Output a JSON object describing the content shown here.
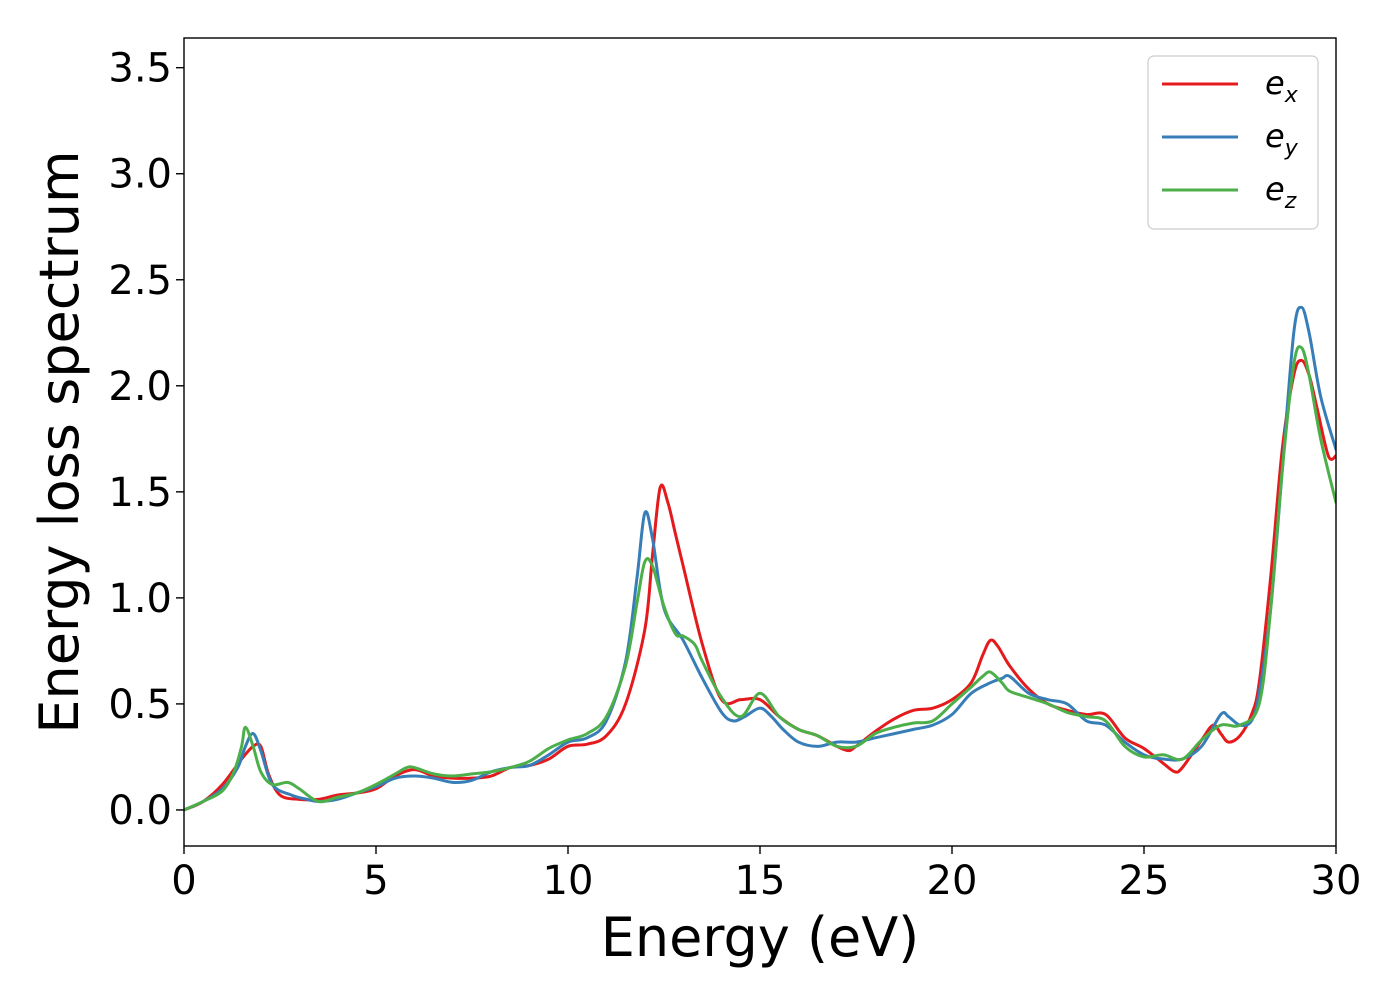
{
  "chart_data": {
    "type": "line",
    "title": "",
    "xlabel": "Energy (eV)",
    "ylabel": "Energy loss spectrum",
    "xlim": [
      0,
      30
    ],
    "ylim": [
      -0.17,
      3.64
    ],
    "xticks": [
      0,
      5,
      10,
      15,
      20,
      25,
      30
    ],
    "yticks": [
      0.0,
      0.5,
      1.0,
      1.5,
      2.0,
      2.5,
      3.0,
      3.5
    ],
    "grid": false,
    "legend_position": "top-right",
    "series": [
      {
        "name": "e_x",
        "label_base": "e",
        "label_sub": "x",
        "color": "#e41a1c",
        "x": [
          0,
          0.5,
          1.0,
          1.5,
          1.8,
          2.0,
          2.2,
          2.5,
          3.0,
          3.5,
          4.0,
          4.5,
          5.0,
          5.5,
          6.0,
          6.5,
          7.0,
          7.5,
          8.0,
          8.5,
          9.0,
          9.5,
          10.0,
          10.5,
          11.0,
          11.5,
          12.0,
          12.2,
          12.4,
          12.6,
          12.8,
          13.0,
          13.5,
          14.0,
          14.5,
          15.0,
          15.5,
          16.0,
          16.5,
          17.0,
          17.3,
          17.5,
          18.0,
          18.5,
          19.0,
          19.5,
          20.0,
          20.5,
          20.8,
          21.0,
          21.2,
          21.5,
          22.0,
          22.5,
          23.0,
          23.5,
          24.0,
          24.5,
          25.0,
          25.5,
          25.8,
          26.0,
          26.5,
          26.8,
          27.0,
          27.2,
          27.5,
          27.8,
          28.0,
          28.3,
          28.6,
          28.9,
          29.1,
          29.3,
          29.5,
          29.8,
          30.0
        ],
        "y": [
          0.0,
          0.04,
          0.12,
          0.24,
          0.3,
          0.3,
          0.17,
          0.07,
          0.05,
          0.05,
          0.07,
          0.08,
          0.1,
          0.16,
          0.19,
          0.16,
          0.15,
          0.15,
          0.16,
          0.2,
          0.21,
          0.24,
          0.3,
          0.31,
          0.35,
          0.5,
          0.85,
          1.2,
          1.52,
          1.45,
          1.3,
          1.15,
          0.78,
          0.52,
          0.52,
          0.52,
          0.44,
          0.38,
          0.35,
          0.3,
          0.28,
          0.3,
          0.37,
          0.43,
          0.47,
          0.48,
          0.52,
          0.6,
          0.73,
          0.8,
          0.77,
          0.68,
          0.57,
          0.5,
          0.47,
          0.45,
          0.45,
          0.34,
          0.29,
          0.22,
          0.18,
          0.2,
          0.33,
          0.4,
          0.36,
          0.32,
          0.35,
          0.45,
          0.6,
          1.1,
          1.7,
          2.05,
          2.12,
          2.05,
          1.9,
          1.67,
          1.67
        ]
      },
      {
        "name": "e_y",
        "label_base": "e",
        "label_sub": "y",
        "color": "#377eb8",
        "x": [
          0,
          0.5,
          1.0,
          1.4,
          1.6,
          1.8,
          2.0,
          2.3,
          2.8,
          3.2,
          3.5,
          4.0,
          4.5,
          5.0,
          5.5,
          6.0,
          6.5,
          7.0,
          7.5,
          8.0,
          8.5,
          9.0,
          9.5,
          10.0,
          10.5,
          11.0,
          11.5,
          11.8,
          12.0,
          12.2,
          12.5,
          13.0,
          13.5,
          14.0,
          14.3,
          14.6,
          15.0,
          15.3,
          15.6,
          16.0,
          16.5,
          17.0,
          17.5,
          18.0,
          18.5,
          19.0,
          19.5,
          20.0,
          20.5,
          21.0,
          21.3,
          21.5,
          22.0,
          22.5,
          23.0,
          23.5,
          24.0,
          24.5,
          25.0,
          25.5,
          26.0,
          26.5,
          27.0,
          27.2,
          27.5,
          27.8,
          28.0,
          28.3,
          28.6,
          28.9,
          29.1,
          29.3,
          29.6,
          30.0
        ],
        "y": [
          0.0,
          0.04,
          0.1,
          0.2,
          0.3,
          0.36,
          0.28,
          0.12,
          0.07,
          0.05,
          0.04,
          0.05,
          0.08,
          0.11,
          0.15,
          0.16,
          0.15,
          0.13,
          0.14,
          0.18,
          0.2,
          0.21,
          0.26,
          0.32,
          0.34,
          0.42,
          0.7,
          1.1,
          1.4,
          1.28,
          0.95,
          0.8,
          0.62,
          0.46,
          0.42,
          0.44,
          0.48,
          0.44,
          0.38,
          0.32,
          0.3,
          0.32,
          0.32,
          0.34,
          0.36,
          0.38,
          0.4,
          0.45,
          0.55,
          0.6,
          0.62,
          0.63,
          0.55,
          0.52,
          0.5,
          0.42,
          0.4,
          0.32,
          0.26,
          0.24,
          0.24,
          0.3,
          0.45,
          0.44,
          0.4,
          0.42,
          0.55,
          0.95,
          1.6,
          2.25,
          2.37,
          2.25,
          1.95,
          1.7
        ]
      },
      {
        "name": "e_z",
        "label_base": "e",
        "label_sub": "z",
        "color": "#4daf4a",
        "x": [
          0,
          0.5,
          1.0,
          1.3,
          1.5,
          1.6,
          1.8,
          2.0,
          2.3,
          2.7,
          3.0,
          3.5,
          4.0,
          4.5,
          5.0,
          5.5,
          5.8,
          6.0,
          6.5,
          7.0,
          7.5,
          8.0,
          8.5,
          9.0,
          9.5,
          10.0,
          10.5,
          11.0,
          11.5,
          11.8,
          12.0,
          12.2,
          12.5,
          12.8,
          13.0,
          13.3,
          13.5,
          14.0,
          14.5,
          15.0,
          15.5,
          16.0,
          16.5,
          17.0,
          17.5,
          18.0,
          18.5,
          19.0,
          19.5,
          20.0,
          20.5,
          20.8,
          21.0,
          21.3,
          21.5,
          22.0,
          22.5,
          23.0,
          23.5,
          24.0,
          24.5,
          25.0,
          25.5,
          26.0,
          26.5,
          27.0,
          27.5,
          28.0,
          28.3,
          28.6,
          28.9,
          29.1,
          29.3,
          29.6,
          30.0
        ],
        "y": [
          0.0,
          0.04,
          0.09,
          0.18,
          0.3,
          0.39,
          0.3,
          0.18,
          0.12,
          0.13,
          0.1,
          0.04,
          0.06,
          0.08,
          0.12,
          0.17,
          0.2,
          0.2,
          0.17,
          0.16,
          0.17,
          0.18,
          0.2,
          0.23,
          0.29,
          0.33,
          0.36,
          0.44,
          0.68,
          0.98,
          1.17,
          1.15,
          0.96,
          0.83,
          0.82,
          0.78,
          0.7,
          0.53,
          0.44,
          0.55,
          0.44,
          0.38,
          0.35,
          0.3,
          0.3,
          0.36,
          0.39,
          0.41,
          0.42,
          0.5,
          0.58,
          0.63,
          0.65,
          0.6,
          0.56,
          0.53,
          0.5,
          0.46,
          0.44,
          0.42,
          0.3,
          0.25,
          0.26,
          0.24,
          0.33,
          0.4,
          0.4,
          0.5,
          0.95,
          1.6,
          2.1,
          2.18,
          2.05,
          1.75,
          1.45
        ]
      }
    ]
  }
}
